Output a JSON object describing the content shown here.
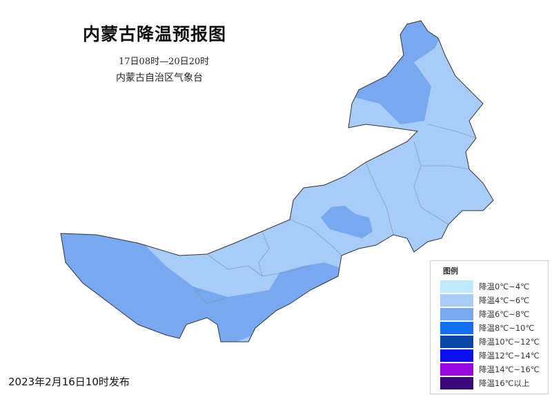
{
  "title": "内蒙古降温预报图",
  "period": "17日08时—20日20时",
  "organization": "内蒙古自治区气象台",
  "issued": "2023年2月16日10时发布",
  "legend": {
    "title": "图例",
    "items": [
      {
        "label": "降温0℃~4℃",
        "color": "#bfeafc"
      },
      {
        "label": "降温4℃~6℃",
        "color": "#a8ccf8"
      },
      {
        "label": "降温6℃~8℃",
        "color": "#78a8f0"
      },
      {
        "label": "降温8℃~10℃",
        "color": "#1070f0"
      },
      {
        "label": "降温10℃~12℃",
        "color": "#0a48a8"
      },
      {
        "label": "降温12℃~14℃",
        "color": "#0a10f0"
      },
      {
        "label": "降温14℃~16℃",
        "color": "#9a08e0"
      },
      {
        "label": "降温16℃以上",
        "color": "#3a0878"
      }
    ]
  },
  "map_levels_shown": [
    "降温4℃~6℃",
    "降温6℃~8℃"
  ]
}
